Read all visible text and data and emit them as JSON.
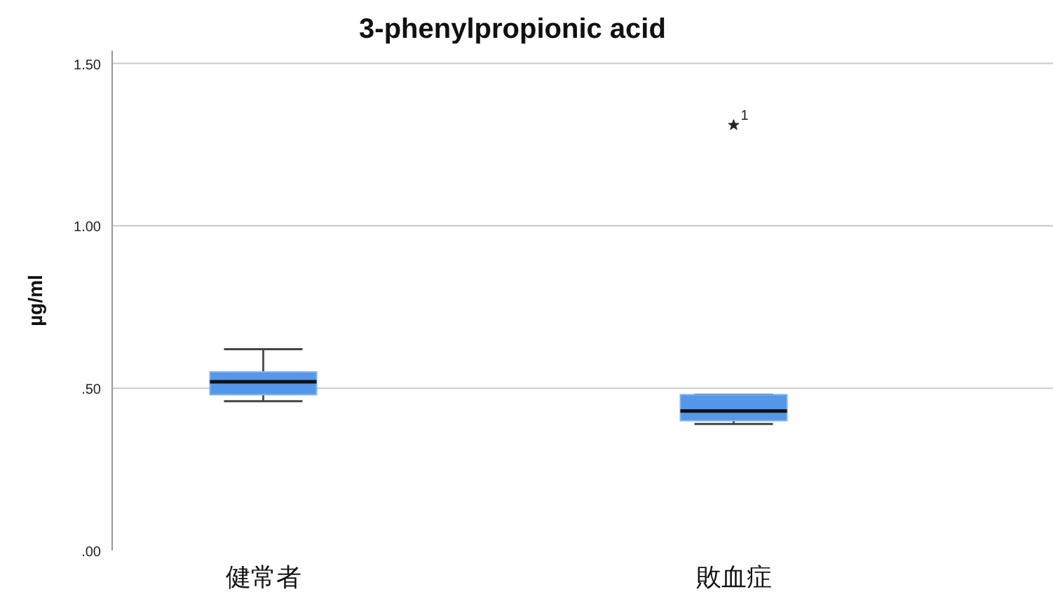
{
  "chart_data": {
    "type": "box",
    "title": "3-phenylpropionic acid",
    "ylabel": "µg/ml",
    "categories": [
      "健常者",
      "敗血症"
    ],
    "boxes": [
      {
        "low": 0.46,
        "q1": 0.48,
        "median": 0.52,
        "q3": 0.55,
        "high": 0.62
      },
      {
        "low": 0.39,
        "q1": 0.4,
        "median": 0.43,
        "q3": 0.48,
        "high": 0.48,
        "outliers": [
          1.31
        ]
      }
    ],
    "color": "#5597e8",
    "marker": "star",
    "ylim": [
      0,
      1.54
    ],
    "yticks": [
      {
        "value": 0,
        "label": ".00"
      },
      {
        "value": 0.5,
        "label": ".50"
      },
      {
        "value": 1.0,
        "label": "1.00"
      },
      {
        "value": 1.5,
        "label": "1.50"
      }
    ],
    "grid": "y",
    "annotations": [
      "1"
    ]
  }
}
